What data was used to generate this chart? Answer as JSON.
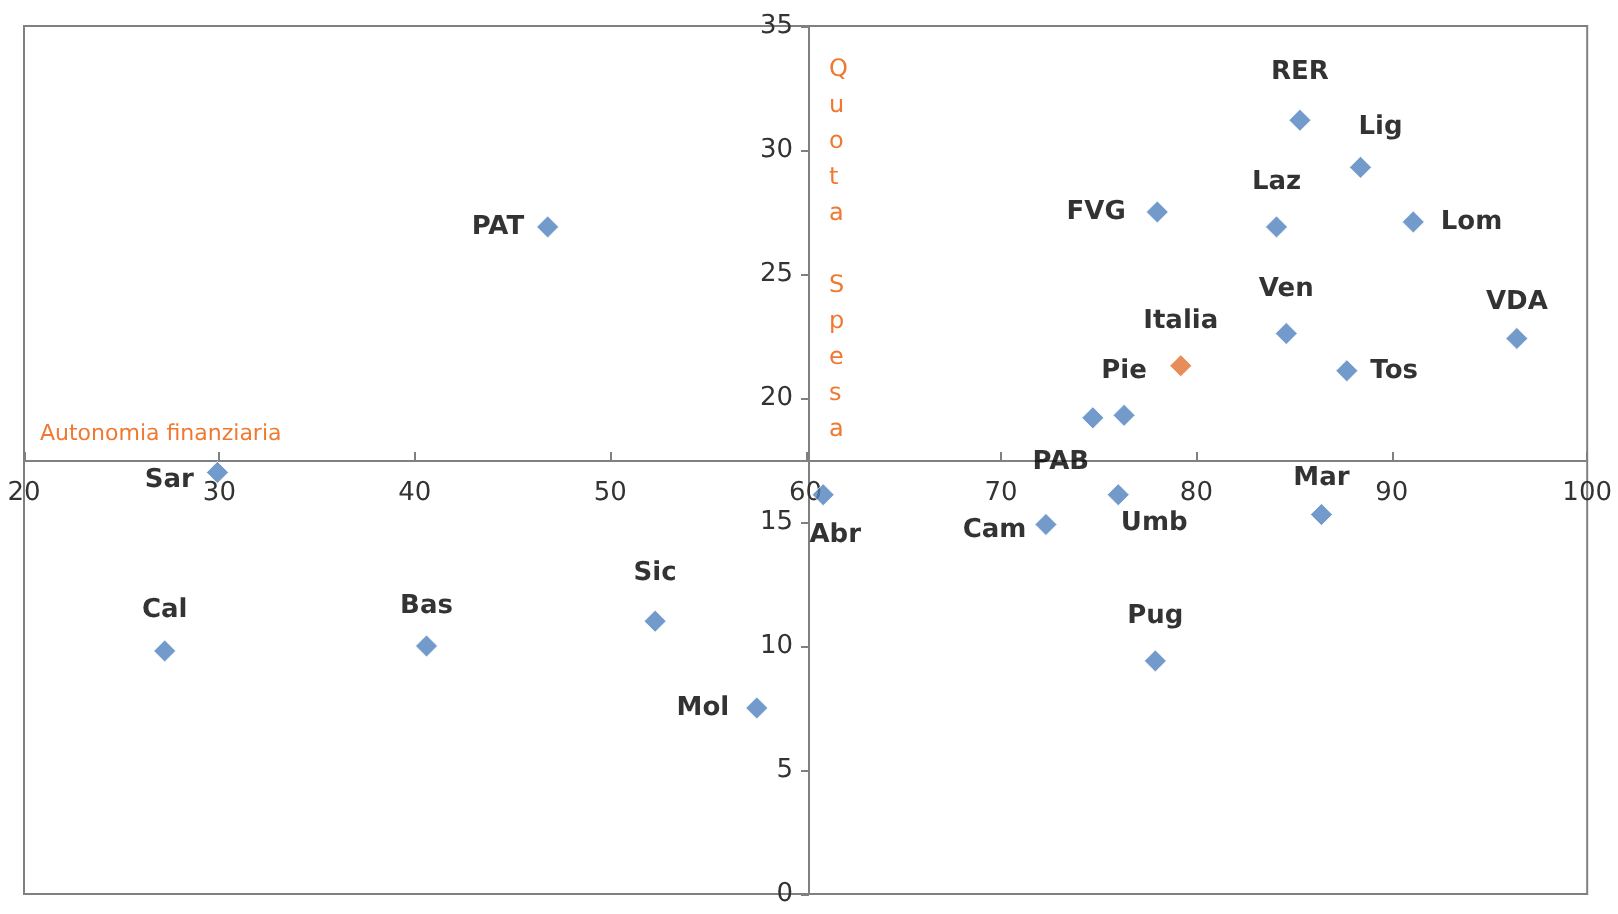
{
  "chart_data": {
    "type": "scatter",
    "xlabel": "Autonomia finanziaria",
    "ylabel": "Quota Spesa",
    "xlim": [
      20,
      100
    ],
    "xticks": [
      20,
      30,
      40,
      50,
      60,
      70,
      80,
      90,
      100
    ],
    "ylim": [
      0,
      35
    ],
    "yticks": [
      0,
      5,
      10,
      15,
      20,
      25,
      30,
      35
    ],
    "grid": false,
    "marker": "diamond",
    "series": [
      {
        "x": [
          46.8,
          29.9,
          27.2,
          40.6,
          52.3,
          57.5,
          60.9,
          72.3,
          76.0,
          74.7,
          76.3,
          79.2,
          77.9,
          78.0,
          84.1,
          85.3,
          88.4,
          91.1,
          84.6,
          87.7,
          86.4,
          96.4
        ],
        "values": [
          26.9,
          17.0,
          9.8,
          10.0,
          11.0,
          7.5,
          16.1,
          14.9,
          16.1,
          19.2,
          19.3,
          21.3,
          9.4,
          27.5,
          26.9,
          31.2,
          29.3,
          27.1,
          22.6,
          21.1,
          15.3,
          22.4
        ],
        "colors": [
          "#4f81bd",
          "#4f81bd",
          "#4f81bd",
          "#4f81bd",
          "#4f81bd",
          "#4f81bd",
          "#4f81bd",
          "#4f81bd",
          "#4f81bd",
          "#4f81bd",
          "#4f81bd",
          "#e07030",
          "#4f81bd",
          "#4f81bd",
          "#4f81bd",
          "#4f81bd",
          "#4f81bd",
          "#4f81bd",
          "#4f81bd",
          "#4f81bd",
          "#4f81bd",
          "#4f81bd"
        ],
        "value_labels": [
          "PAT",
          "Sar",
          "Cal",
          "Bas",
          "Sic",
          "Mol",
          "Abr",
          "Cam",
          "Umb",
          "PAB",
          "Pie",
          "Italia",
          "Pug",
          "FVG",
          "Laz",
          "RER",
          "Lig",
          "Lom",
          "Ven",
          "Tos",
          "Mar",
          "VDA"
        ]
      }
    ]
  }
}
